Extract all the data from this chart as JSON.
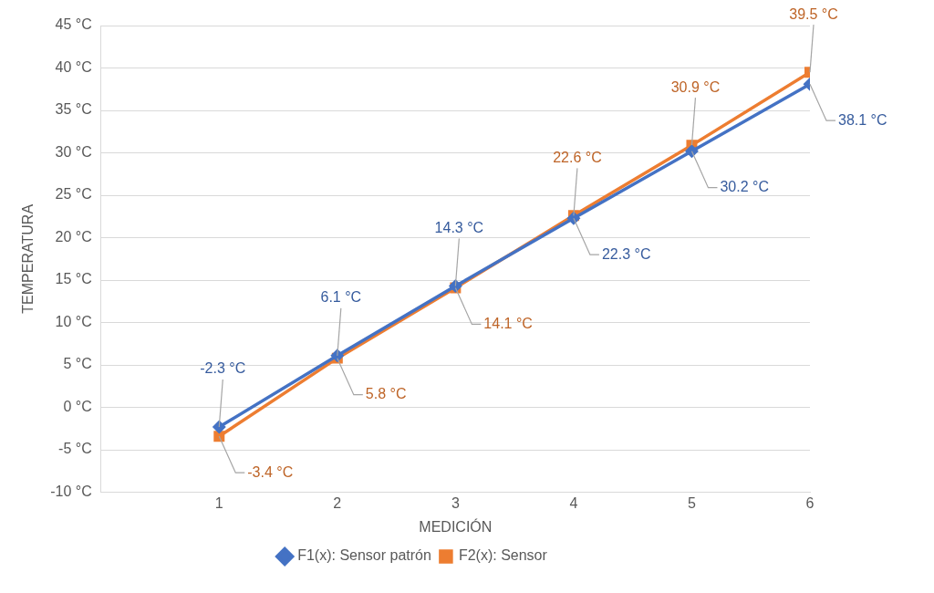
{
  "chart_data": {
    "type": "line",
    "xlabel": "MEDICIÓN",
    "ylabel": "TEMPERATURA",
    "x": [
      1,
      2,
      3,
      4,
      5,
      6
    ],
    "xlim": [
      0,
      6
    ],
    "xticks": [
      1,
      2,
      3,
      4,
      5,
      6
    ],
    "ylim": [
      -10,
      45
    ],
    "yticks": [
      {
        "value": -10,
        "label": "-10 °C"
      },
      {
        "value": -5,
        "label": "-5 °C"
      },
      {
        "value": 0,
        "label": "0 °C"
      },
      {
        "value": 5,
        "label": "5 °C"
      },
      {
        "value": 10,
        "label": "10 °C"
      },
      {
        "value": 15,
        "label": "15 °C"
      },
      {
        "value": 20,
        "label": "20 °C"
      },
      {
        "value": 25,
        "label": "25 °C"
      },
      {
        "value": 30,
        "label": "30 °C"
      },
      {
        "value": 35,
        "label": "35 °C"
      },
      {
        "value": 40,
        "label": "40 °C"
      },
      {
        "value": 45,
        "label": "45 °C"
      }
    ],
    "grid": "y",
    "legend": "bottom",
    "line_style": "solid",
    "series": [
      {
        "name": "F1(x): Sensor patrón",
        "color": "#4472c4",
        "marker": "diamond",
        "values": [
          -2.3,
          6.1,
          14.3,
          22.3,
          30.2,
          38.1
        ],
        "value_labels": [
          "-2.3 °C",
          "6.1 °C",
          "14.3 °C",
          "22.3 °C",
          "30.2 °C",
          "38.1 °C"
        ]
      },
      {
        "name": "F2(x): Sensor",
        "color": "#ed7d31",
        "marker": "square",
        "values": [
          -3.4,
          5.8,
          14.1,
          22.6,
          30.9,
          39.5
        ],
        "value_labels": [
          "-3.4 °C",
          "5.8 °C",
          "14.1 °C",
          "22.6 °C",
          "30.9 °C",
          "39.5 °C"
        ]
      }
    ]
  }
}
